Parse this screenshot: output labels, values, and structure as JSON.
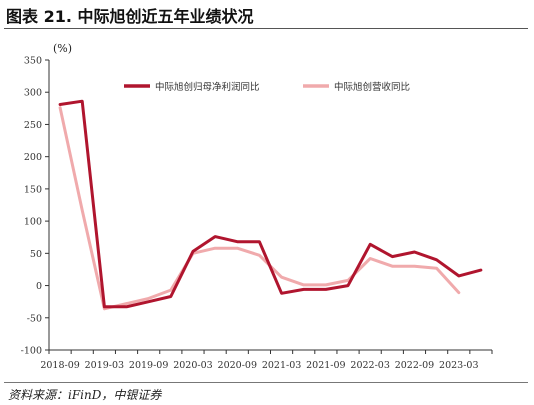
{
  "header": {
    "title": "图表 21. 中际旭创近五年业绩状况"
  },
  "footer": {
    "source": "资料来源：iFinD，中银证券"
  },
  "colors": {
    "profit": "#b0152e",
    "revenue": "#f0aaac",
    "axis": "#333333"
  },
  "chart_data": {
    "type": "line",
    "unit_label": "(%)",
    "ylim": [
      -100,
      350
    ],
    "yticks": [
      350,
      300,
      250,
      200,
      150,
      100,
      50,
      0,
      -50,
      -100
    ],
    "x_labels": [
      "2018-09",
      "2019-03",
      "2019-09",
      "2020-03",
      "2020-09",
      "2021-03",
      "2021-09",
      "2022-03",
      "2022-09",
      "2023-03"
    ],
    "grid": false,
    "legend_position": "top",
    "quarters": [
      "2018-09",
      "2018-12",
      "2019-03",
      "2019-06",
      "2019-09",
      "2019-12",
      "2020-03",
      "2020-06",
      "2020-09",
      "2020-12",
      "2021-03",
      "2021-06",
      "2021-09",
      "2021-12",
      "2022-03",
      "2022-06",
      "2022-09",
      "2022-12",
      "2023-03",
      "2023-06"
    ],
    "series": [
      {
        "name": "中际旭创归母净利润同比",
        "values": [
          281,
          286,
          -33,
          -33,
          -25,
          -17,
          53,
          76,
          68,
          68,
          -12,
          -6,
          -6,
          0,
          64,
          45,
          52,
          40,
          15,
          24
        ]
      },
      {
        "name": "中际旭创营收同比",
        "values": [
          276,
          117,
          -36,
          -28,
          -20,
          -7,
          50,
          58,
          58,
          47,
          13,
          1,
          1,
          8,
          42,
          30,
          30,
          27,
          -11,
          null
        ]
      }
    ]
  }
}
